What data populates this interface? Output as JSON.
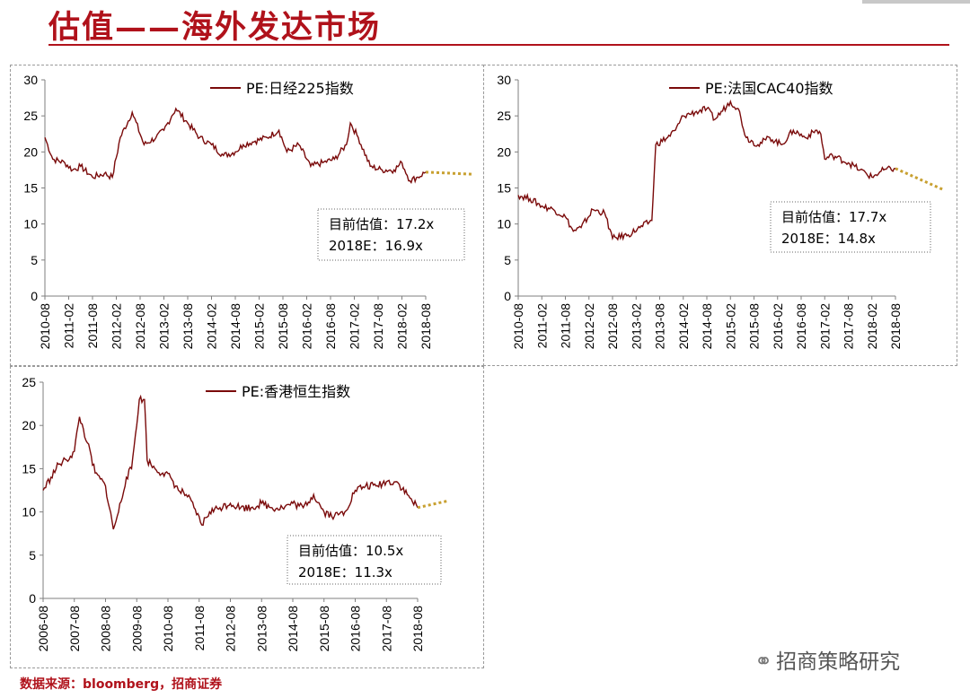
{
  "header": {
    "title": "估值——海外发达市场"
  },
  "footer": {
    "source": "数据来源：bloomberg，招商证券"
  },
  "watermark": {
    "text": "招商策略研究",
    "icon": "wechat-icon"
  },
  "colors": {
    "line": "#7a0a0a",
    "forecast": "#c8a030",
    "title": "#b0121b",
    "axis": "#7f7f7f"
  },
  "chart_data": [
    {
      "type": "line",
      "series": [
        {
          "name": "PE:日经225指数"
        }
      ],
      "legend": "top-center",
      "ylim": [
        0,
        30
      ],
      "yticks": [
        "0",
        "5",
        "10",
        "15",
        "20",
        "25",
        "30"
      ],
      "xticks": [
        "2010-08",
        "2011-02",
        "2011-08",
        "2012-02",
        "2012-08",
        "2013-02",
        "2013-08",
        "2014-02",
        "2014-08",
        "2015-02",
        "2015-08",
        "2016-02",
        "2016-08",
        "2017-02",
        "2017-08",
        "2018-02",
        "2018-08"
      ],
      "x": [
        "2010-08",
        "2010-10",
        "2011-01",
        "2011-03",
        "2011-05",
        "2011-08",
        "2011-11",
        "2012-01",
        "2012-03",
        "2012-06",
        "2012-09",
        "2012-12",
        "2013-02",
        "2013-04",
        "2013-05",
        "2013-08",
        "2013-11",
        "2014-02",
        "2014-05",
        "2014-08",
        "2014-10",
        "2015-01",
        "2015-04",
        "2015-07",
        "2015-09",
        "2015-12",
        "2016-03",
        "2016-06",
        "2016-09",
        "2016-12",
        "2017-01",
        "2017-03",
        "2017-06",
        "2017-09",
        "2017-12",
        "2018-02",
        "2018-04",
        "2018-06",
        "2018-08"
      ],
      "values": [
        22,
        19,
        18.5,
        17.5,
        18,
        16.5,
        17,
        16.5,
        22,
        25.5,
        21,
        22,
        23,
        25,
        26,
        24,
        22,
        21,
        19.5,
        20,
        21,
        21.5,
        22,
        23,
        20,
        21,
        18,
        18.5,
        19,
        21,
        24,
        22,
        18,
        17.5,
        17.5,
        18.5,
        16,
        16.5,
        17.2
      ],
      "forecast": {
        "x": [
          "2018-08",
          "2019-08"
        ],
        "values": [
          17.2,
          16.9
        ]
      },
      "annotation": {
        "current_label": "目前估值：",
        "current_value": "17.2x",
        "forecast_label": "2018E：",
        "forecast_value": "16.9x"
      }
    },
    {
      "type": "line",
      "series": [
        {
          "name": "PE:法国CAC40指数"
        }
      ],
      "legend": "top-center",
      "ylim": [
        0,
        30
      ],
      "yticks": [
        "0",
        "5",
        "10",
        "15",
        "20",
        "25",
        "30"
      ],
      "xticks": [
        "2010-08",
        "2011-02",
        "2011-08",
        "2012-02",
        "2012-08",
        "2013-02",
        "2013-08",
        "2014-02",
        "2014-08",
        "2015-02",
        "2015-08",
        "2016-02",
        "2016-08",
        "2017-02",
        "2017-08",
        "2018-02",
        "2018-08"
      ],
      "x": [
        "2010-08",
        "2010-11",
        "2011-02",
        "2011-05",
        "2011-08",
        "2011-10",
        "2011-12",
        "2012-03",
        "2012-06",
        "2012-08",
        "2012-12",
        "2013-03",
        "2013-06",
        "2013-07",
        "2013-10",
        "2013-12",
        "2014-02",
        "2014-05",
        "2014-08",
        "2014-10",
        "2015-02",
        "2015-04",
        "2015-06",
        "2015-09",
        "2015-12",
        "2016-03",
        "2016-06",
        "2016-09",
        "2016-12",
        "2017-01",
        "2017-02",
        "2017-04",
        "2017-08",
        "2017-11",
        "2018-02",
        "2018-05",
        "2018-08"
      ],
      "values": [
        14,
        13.5,
        12.5,
        12,
        11,
        9,
        9.5,
        12,
        11.5,
        8,
        8.5,
        9.5,
        10.5,
        21,
        22,
        23,
        25,
        25.5,
        26,
        24.5,
        27,
        26,
        22,
        21,
        22,
        21,
        23,
        22,
        23,
        22.5,
        19,
        19.5,
        18.5,
        17.5,
        16.5,
        17.5,
        17.7
      ],
      "forecast": {
        "x": [
          "2018-08",
          "2019-08"
        ],
        "values": [
          17.7,
          14.8
        ]
      },
      "annotation": {
        "current_label": "目前估值：",
        "current_value": "17.7x",
        "forecast_label": "2018E：",
        "forecast_value": "14.8x"
      }
    },
    {
      "type": "line",
      "series": [
        {
          "name": "PE:香港恒生指数"
        }
      ],
      "legend": "top-center",
      "ylim": [
        0,
        25
      ],
      "yticks": [
        "0",
        "5",
        "10",
        "15",
        "20",
        "25"
      ],
      "xticks": [
        "2006-08",
        "2007-08",
        "2008-08",
        "2009-08",
        "2010-08",
        "2011-08",
        "2012-08",
        "2013-08",
        "2014-08",
        "2015-08",
        "2016-08",
        "2017-08",
        "2018-08"
      ],
      "x": [
        "2006-08",
        "2006-11",
        "2007-02",
        "2007-05",
        "2007-08",
        "2007-10",
        "2008-01",
        "2008-04",
        "2008-08",
        "2008-11",
        "2009-01",
        "2009-04",
        "2009-06",
        "2009-09",
        "2009-11",
        "2009-12",
        "2010-03",
        "2010-06",
        "2010-09",
        "2010-12",
        "2011-03",
        "2011-06",
        "2011-09",
        "2011-12",
        "2012-04",
        "2012-08",
        "2012-12",
        "2013-04",
        "2013-08",
        "2013-12",
        "2014-04",
        "2014-08",
        "2014-12",
        "2015-04",
        "2015-08",
        "2015-12",
        "2016-04",
        "2016-08",
        "2016-12",
        "2017-04",
        "2017-08",
        "2017-12",
        "2018-04",
        "2018-08"
      ],
      "values": [
        12.5,
        14,
        15.5,
        16,
        17,
        21,
        18,
        14.5,
        13,
        8,
        10,
        14,
        15,
        23,
        23,
        16,
        15,
        14.5,
        14,
        12.5,
        12,
        10.5,
        8.5,
        10,
        10.5,
        11,
        10.5,
        10.5,
        11,
        10.5,
        10.5,
        11,
        10.5,
        12,
        10,
        9.5,
        10,
        12.5,
        13,
        13,
        13.5,
        13.5,
        12,
        10.5
      ],
      "forecast": {
        "x": [
          "2018-08",
          "2019-08"
        ],
        "values": [
          10.5,
          11.3
        ]
      },
      "annotation": {
        "current_label": "目前估值：",
        "current_value": "10.5x",
        "forecast_label": "2018E：",
        "forecast_value": "11.3x"
      }
    }
  ]
}
